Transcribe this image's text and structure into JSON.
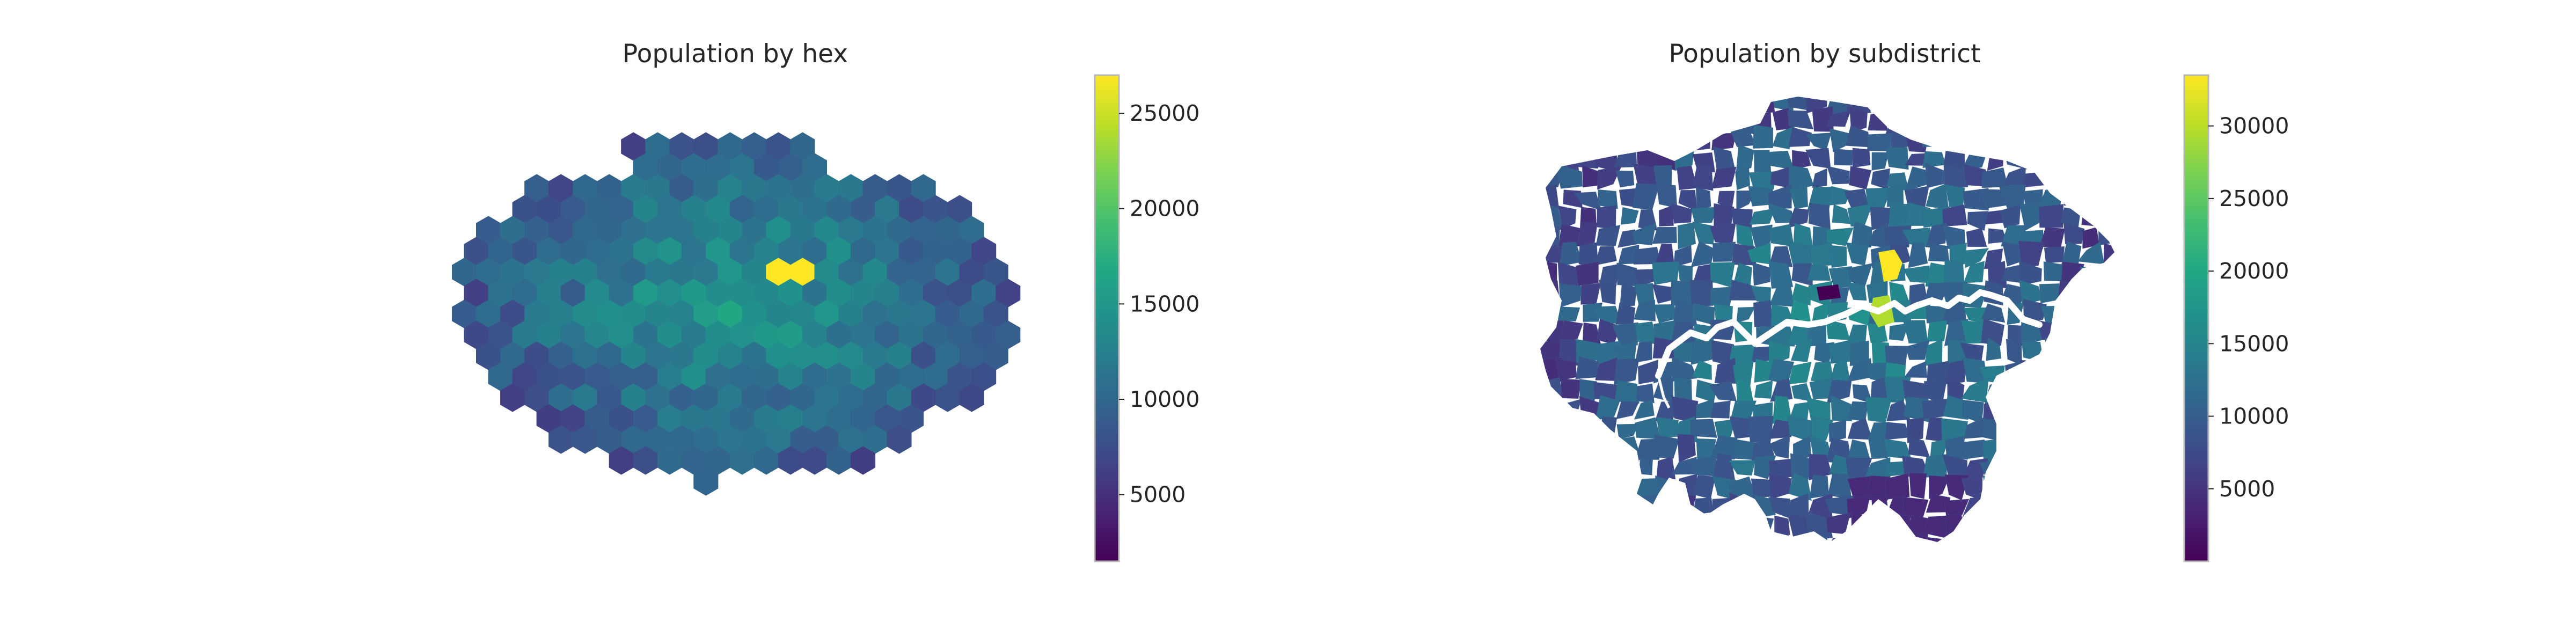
{
  "panels": [
    {
      "title": "Population by hex",
      "map_kind": "hexbin",
      "colormap": "viridis",
      "colorbar": {
        "min": 1500,
        "max": 27000,
        "ticks": [
          5000,
          10000,
          15000,
          20000,
          25000
        ],
        "tick_labels": [
          "5000",
          "10000",
          "15000",
          "20000",
          "25000"
        ]
      }
    },
    {
      "title": "Population by subdistrict",
      "map_kind": "choropleth",
      "colormap": "viridis",
      "colorbar": {
        "min": 0,
        "max": 33500,
        "ticks": [
          5000,
          10000,
          15000,
          20000,
          25000,
          30000
        ],
        "tick_labels": [
          "5000",
          "10000",
          "15000",
          "20000",
          "25000",
          "30000"
        ]
      }
    }
  ],
  "colors": {
    "background": "#ffffff",
    "river": "#ffffff",
    "text": "#262626"
  }
}
